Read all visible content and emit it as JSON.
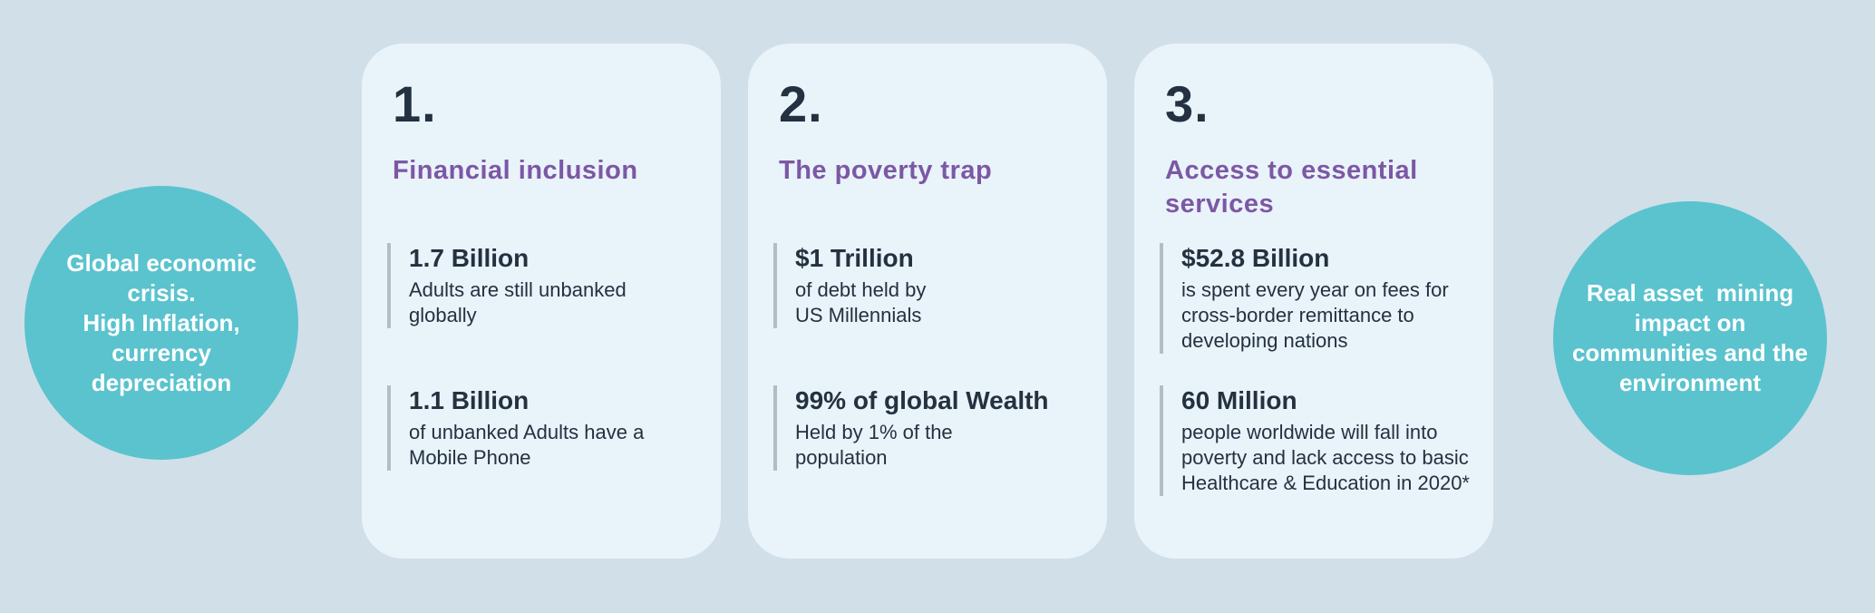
{
  "palette": {
    "page_background": "#d1dfe9",
    "card_background": "#e9f3fa",
    "circle_background": "#5ac3ce",
    "circle_text_color": "#ffffff",
    "heading_purple": "#7c58a4",
    "text_dark_navy": "#233140",
    "stat_bar_gray": "#b4bdc5"
  },
  "left_circle": {
    "text": "Global economic\ncrisis.\nHigh Inflation,\ncurrency\ndepreciation"
  },
  "right_circle": {
    "text": "Real asset  mining\nimpact on\ncommunities and the\nenvironment"
  },
  "cards": [
    {
      "number": "1.",
      "heading": "Financial inclusion",
      "stats": [
        {
          "value": "1.7 Billion",
          "description": "Adults are still unbanked\nglobally"
        },
        {
          "value": "1.1 Billion",
          "description": "of unbanked Adults have a\nMobile Phone"
        }
      ]
    },
    {
      "number": "2.",
      "heading": "The poverty trap",
      "stats": [
        {
          "value": "$1 Trillion",
          "description": "of debt held by\nUS Millennials"
        },
        {
          "value": "99% of global Wealth",
          "description": "Held by 1% of the\npopulation"
        }
      ]
    },
    {
      "number": "3.",
      "heading": "Access to essential\nservices",
      "stats": [
        {
          "value": "$52.8 Billion",
          "description": "is spent every year on fees for\ncross-border remittance to\ndeveloping nations"
        },
        {
          "value": "60 Million",
          "description": "people worldwide will fall into\npoverty and lack access to basic\nHealthcare & Education in 2020*"
        }
      ]
    }
  ]
}
